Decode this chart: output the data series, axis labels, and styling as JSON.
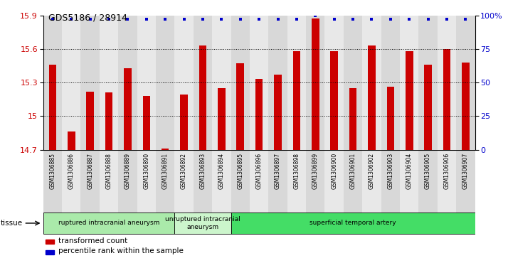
{
  "title": "GDS5186 / 28914",
  "samples": [
    "GSM1306885",
    "GSM1306886",
    "GSM1306887",
    "GSM1306888",
    "GSM1306889",
    "GSM1306890",
    "GSM1306891",
    "GSM1306892",
    "GSM1306893",
    "GSM1306894",
    "GSM1306895",
    "GSM1306896",
    "GSM1306897",
    "GSM1306898",
    "GSM1306899",
    "GSM1306900",
    "GSM1306901",
    "GSM1306902",
    "GSM1306903",
    "GSM1306904",
    "GSM1306905",
    "GSM1306906",
    "GSM1306907"
  ],
  "bar_values": [
    15.46,
    14.86,
    15.22,
    15.21,
    15.43,
    15.18,
    14.71,
    15.19,
    15.63,
    15.25,
    15.47,
    15.33,
    15.37,
    15.58,
    15.87,
    15.58,
    15.25,
    15.63,
    15.26,
    15.58,
    15.46,
    15.6,
    15.48
  ],
  "percentile_values": [
    97,
    97,
    97,
    97,
    97,
    97,
    97,
    97,
    97,
    97,
    97,
    97,
    97,
    97,
    100,
    97,
    97,
    97,
    97,
    97,
    97,
    97,
    97
  ],
  "ylim_left": [
    14.7,
    15.9
  ],
  "ylim_right": [
    0,
    100
  ],
  "yticks_left": [
    14.7,
    15.0,
    15.3,
    15.6,
    15.9
  ],
  "yticks_right": [
    0,
    25,
    50,
    75,
    100
  ],
  "bar_color": "#cc0000",
  "dot_color": "#0000cc",
  "plot_bg_color": "#ffffff",
  "col_bg_even": "#d8d8d8",
  "col_bg_odd": "#e8e8e8",
  "groups": [
    {
      "label": "ruptured intracranial aneurysm",
      "start": 0,
      "end": 7,
      "color": "#aaeaaa"
    },
    {
      "label": "unruptured intracranial\naneurysm",
      "start": 7,
      "end": 10,
      "color": "#ccf5cc"
    },
    {
      "label": "superficial temporal artery",
      "start": 10,
      "end": 23,
      "color": "#44dd66"
    }
  ],
  "tissue_label": "tissue",
  "legend_items": [
    {
      "label": "transformed count",
      "color": "#cc0000"
    },
    {
      "label": "percentile rank within the sample",
      "color": "#0000cc"
    }
  ]
}
